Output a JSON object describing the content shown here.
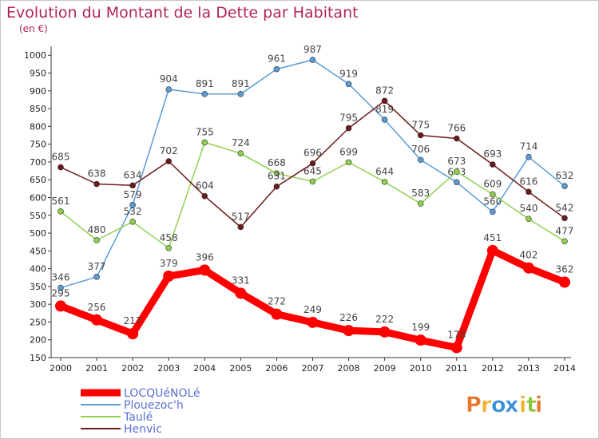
{
  "chart_data": {
    "type": "line",
    "title": "Evolution du Montant de la Dette par Habitant",
    "subtitle": "(en €)",
    "x": [
      "2000",
      "2001",
      "2002",
      "2003",
      "2004",
      "2005",
      "2006",
      "2007",
      "2008",
      "2009",
      "2010",
      "2011",
      "2012",
      "2013",
      "2014"
    ],
    "y_ticks": [
      "150",
      "200",
      "250",
      "300",
      "350",
      "400",
      "450",
      "500",
      "550",
      "600",
      "650",
      "700",
      "750",
      "800",
      "850",
      "900",
      "950",
      "1000"
    ],
    "ylim": [
      150,
      1000
    ],
    "grid": false,
    "legend_position": "bottom-left",
    "series": [
      {
        "name": "LOCQUéNOLé",
        "color": "#ff0000",
        "values": [
          295,
          256,
          217,
          379,
          396,
          331,
          272,
          249,
          226,
          222,
          199,
          178,
          451,
          402,
          362
        ]
      },
      {
        "name": "Plouezoc'h",
        "color": "#5b9bd5",
        "values": [
          346,
          377,
          579,
          904,
          891,
          891,
          961,
          987,
          919,
          819,
          706,
          643,
          560,
          714,
          632
        ]
      },
      {
        "name": "Taulé",
        "color": "#90d050",
        "values": [
          561,
          480,
          532,
          458,
          755,
          724,
          668,
          645,
          699,
          644,
          583,
          673,
          609,
          540,
          477
        ]
      },
      {
        "name": "Henvic",
        "color": "#6b1a1a",
        "values": [
          685,
          638,
          634,
          702,
          604,
          517,
          631,
          696,
          795,
          872,
          775,
          766,
          693,
          616,
          542
        ]
      }
    ]
  },
  "logo": {
    "letters": [
      "P",
      "r",
      "o",
      "x",
      "i",
      "t",
      "i"
    ],
    "colors": [
      "#e8762c",
      "#f2b02e",
      "#3a8fd8",
      "#3a8fd8",
      "#e8b62c",
      "#8cc63e",
      "#e8762c"
    ]
  }
}
